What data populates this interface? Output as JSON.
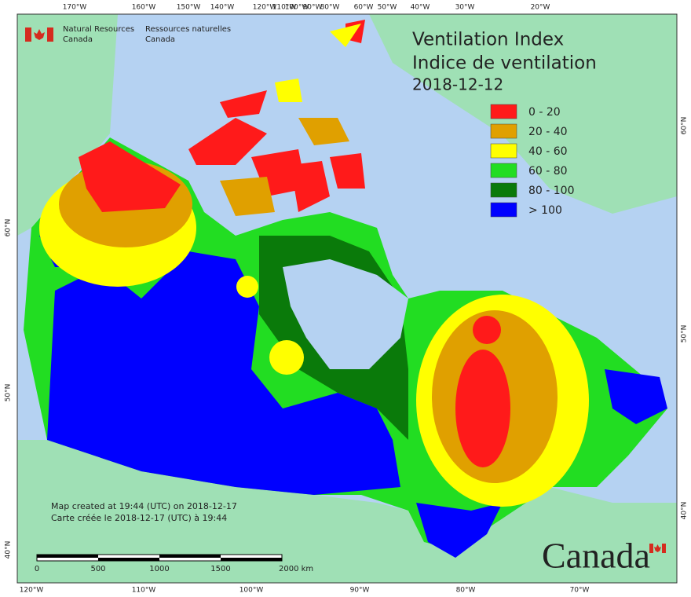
{
  "header": {
    "agency_en": [
      "Natural Resources",
      "Canada"
    ],
    "agency_fr": [
      "Ressources naturelles",
      "Canada"
    ]
  },
  "title": {
    "en": "Ventilation Index",
    "fr": "Indice de ventilation",
    "date": "2018-12-12"
  },
  "legend": [
    {
      "label": "0 - 20",
      "color": "#ff1a1a"
    },
    {
      "label": "20 - 40",
      "color": "#e0a000"
    },
    {
      "label": "40 - 60",
      "color": "#ffff00"
    },
    {
      "label": "60 - 80",
      "color": "#22dd22"
    },
    {
      "label": "80 - 100",
      "color": "#0a7a0a"
    },
    {
      "label": "> 100",
      "color": "#0000ff"
    }
  ],
  "graticule": {
    "top": [
      "170°W",
      "160°W",
      "150°W",
      "140°W",
      "120°W",
      "110°W",
      "100°W",
      "90°W",
      "80°W",
      "60°W",
      "50°W",
      "40°W",
      "30°W",
      "20°W"
    ],
    "bottom": [
      "120°W",
      "110°W",
      "100°W",
      "90°W",
      "80°W",
      "70°W"
    ],
    "left": [
      "60°N",
      "50°N",
      "40°N"
    ],
    "right": [
      "60°N",
      "50°N",
      "40°N"
    ]
  },
  "credits": [
    "Map created at 19:44 (UTC) on 2018-12-17",
    "Carte créée le 2018-12-17 (UTC) à 19:44"
  ],
  "scale_bar": [
    "0",
    "500",
    "1000",
    "1500",
    "2000 km"
  ],
  "wordmark": "Canada"
}
